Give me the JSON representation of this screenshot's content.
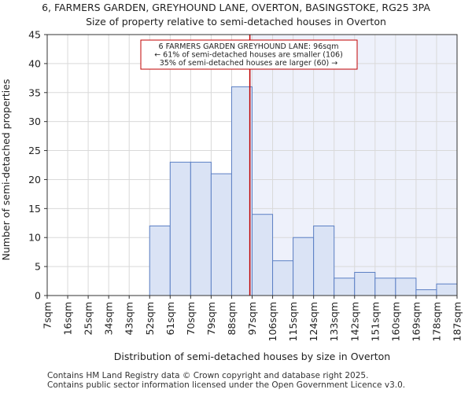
{
  "title_line1": "6, FARMERS GARDEN, GREYHOUND LANE, OVERTON, BASINGSTOKE, RG25 3PA",
  "title_line2": "Size of property relative to semi-detached houses in Overton",
  "footer_line1": "Contains HM Land Registry data © Crown copyright and database right 2025.",
  "footer_line2": "Contains public sector information licensed under the Open Government Licence v3.0.",
  "chart_data": {
    "type": "bar",
    "xlabel": "Distribution of semi-detached houses by size in Overton",
    "ylabel": "Number of semi-detached properties",
    "ylim": [
      0,
      45
    ],
    "yticks": [
      0,
      5,
      10,
      15,
      20,
      25,
      30,
      35,
      40,
      45
    ],
    "grid": true,
    "bin_edges_sqm": [
      7,
      16,
      25,
      34,
      43,
      52,
      61,
      70,
      79,
      88,
      97,
      106,
      115,
      124,
      133,
      142,
      151,
      160,
      169,
      178,
      187
    ],
    "tick_labels": [
      "7sqm",
      "16sqm",
      "25sqm",
      "34sqm",
      "43sqm",
      "52sqm",
      "61sqm",
      "70sqm",
      "79sqm",
      "88sqm",
      "97sqm",
      "106sqm",
      "115sqm",
      "124sqm",
      "133sqm",
      "142sqm",
      "151sqm",
      "160sqm",
      "169sqm",
      "178sqm",
      "187sqm"
    ],
    "values": [
      0,
      0,
      0,
      0,
      0,
      12,
      23,
      23,
      21,
      36,
      14,
      6,
      10,
      12,
      3,
      4,
      3,
      3,
      1,
      2
    ],
    "property_marker_sqm": 96,
    "annotation_lines": [
      "6 FARMERS GARDEN GREYHOUND LANE: 96sqm",
      "← 61% of semi-detached houses are smaller (106)",
      "35% of semi-detached houses are larger (60) →"
    ],
    "colors": {
      "bar_fill": "#dae3f5",
      "bar_stroke": "#5b7fc4",
      "marker": "#c00000",
      "shade_right": "#eef1fb",
      "grid": "#d9d9d9"
    }
  }
}
